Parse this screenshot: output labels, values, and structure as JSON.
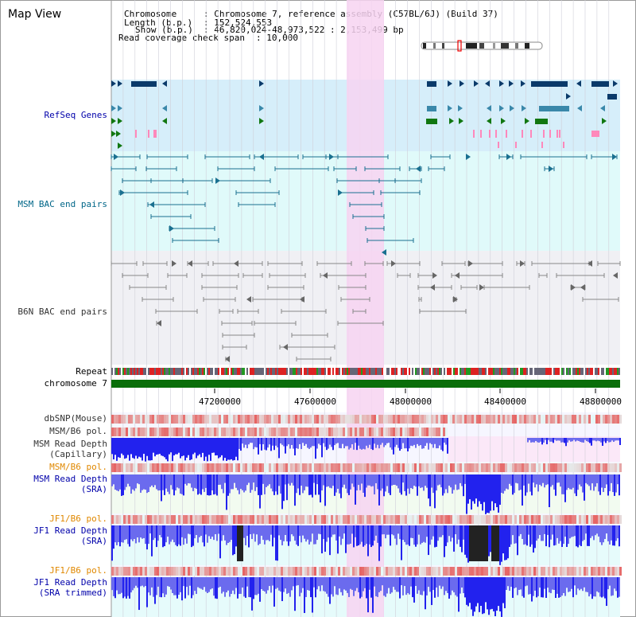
{
  "header": {
    "title": "Map View",
    "info": {
      "chromosome_label": "Chromosome",
      "chromosome_value": ": Chromosome 7, reference assembly (C57BL/6J) (Build 37)",
      "length_label": "Length (b.p.)",
      "length_value": ": 152,524,553",
      "show_label": "Show (b.p.)",
      "show_value": ": 46,820,024-48,973,522 : 2,153,499 bp",
      "coverage_label": "Read coverage check span",
      "coverage_value": ": 10,000"
    }
  },
  "tracks": {
    "refseq": "RefSeq Genes",
    "msm_bac": "MSM BAC end pairs",
    "b6n_bac": "B6N BAC end pairs",
    "repeat": "Repeat",
    "chromosome": "chromosome 7",
    "dbsnp": "dbSNP(Mouse)",
    "msm_b6_pol1": "MSM/B6 pol.",
    "msm_read_cap_1": "MSM Read Depth",
    "msm_read_cap_2": "(Capillary)",
    "msm_b6_pol2": "MSM/B6 pol.",
    "msm_read_sra_1": "MSM Read Depth",
    "msm_read_sra_2": "(SRA)",
    "jf1_b6_pol1": "JF1/B6 pol.",
    "jf1_read_sra_1": "JF1 Read Depth",
    "jf1_read_sra_2": "(SRA)",
    "jf1_b6_pol2": "JF1/B6 pol.",
    "jf1_read_trim_1": "JF1 Read Depth",
    "jf1_read_trim_2": "(SRA trimmed)"
  },
  "axis": {
    "ticks": [
      "47200000",
      "47600000",
      "48000000",
      "48400000",
      "48800000"
    ]
  },
  "colors": {
    "refseq_bg": "#d6eefa",
    "msm_bg": "#e0fafa",
    "b6n_bg": "#f0f0f4",
    "highlight": "#f7d4f1",
    "chrom_bar": "#0a6e0a",
    "label_blue": "#0000aa",
    "label_teal": "#006688",
    "label_gray": "#333333",
    "label_orange": "#e08800",
    "depth_blue": "#3333ee",
    "pol_red": "#e23030"
  }
}
